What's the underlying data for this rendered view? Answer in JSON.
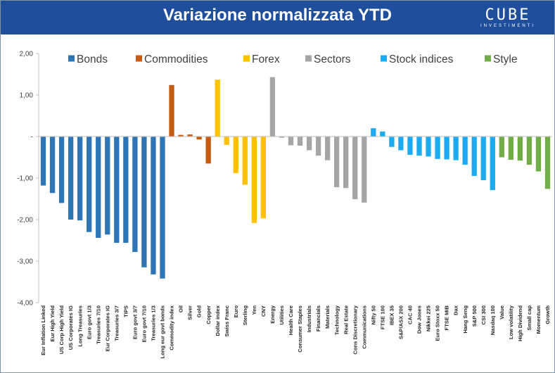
{
  "header": {
    "title": "Variazione normalizzata YTD",
    "logo_text": "CUBE",
    "logo_subtext": "INVESTIMENTI"
  },
  "chart_data": {
    "type": "bar",
    "title": "Variazione normalizzata YTD",
    "xlabel": "",
    "ylabel": "",
    "ylim": [
      -4,
      2
    ],
    "yticks": [
      2,
      1,
      0,
      -1,
      -2,
      -3,
      -4
    ],
    "ytick_labels": [
      "2,00",
      "1,00",
      "-",
      "-1,00",
      "-2,00",
      "-3,00",
      "-4,00"
    ],
    "grid": false,
    "legend_position": "top",
    "groups": [
      {
        "name": "Bonds",
        "color": "#2e75b6",
        "categories": [
          "Eur Inflation Linked",
          "Eur High Yield",
          "US Corp High Yield",
          "US Corporates IG",
          "Long Treasuries",
          "Euro govt 1/3",
          "Treasuries 7/10",
          "Eur Corporates IG",
          "Treasuries 3/7",
          "TIPS",
          "Euro govt 3/7",
          "Euro govt 7/10",
          "Treasuries 1/3",
          "Long eur govt bonds"
        ],
        "values": [
          -1.18,
          -1.36,
          -1.6,
          -2.0,
          -2.02,
          -2.3,
          -2.44,
          -2.36,
          -2.56,
          -2.56,
          -2.78,
          -3.15,
          -3.32,
          -3.42
        ]
      },
      {
        "name": "Commodities",
        "color": "#c55a11",
        "categories": [
          "Commodity index",
          "Oil",
          "Silver",
          "Gold",
          "Copper"
        ],
        "values": [
          1.24,
          0.04,
          0.05,
          -0.07,
          -0.65
        ]
      },
      {
        "name": "Forex",
        "color": "#ffc000",
        "categories": [
          "Dollar index",
          "Swiss Franc",
          "Euro",
          "Sterling",
          "Yen",
          "CNY"
        ],
        "values": [
          1.37,
          -0.2,
          -0.88,
          -1.16,
          -2.08,
          -1.97
        ]
      },
      {
        "name": "Sectors",
        "color": "#a5a5a5",
        "categories": [
          "Energy",
          "Utilities",
          "Health Care",
          "Consumer Staples",
          "Industrials",
          "Financials",
          "Materials",
          "Technology",
          "Real Estate",
          "Cons Discretionary",
          "Communications"
        ],
        "values": [
          1.43,
          -0.03,
          -0.21,
          -0.22,
          -0.33,
          -0.46,
          -0.57,
          -1.22,
          -1.24,
          -1.51,
          -1.59
        ]
      },
      {
        "name": "Stock indices",
        "color": "#1eaaf1",
        "categories": [
          "Nifty 50",
          "FTSE 100",
          "IBEX 35",
          "S&P/ASX 200",
          "CAC 40",
          "Dow Jones",
          "Nikkei 225",
          "Euro Stoxx 50",
          "FTSE MIB",
          "Dax",
          "Hang Seng",
          "S&P 500",
          "CSI 300",
          "Nasdaq 100"
        ],
        "values": [
          0.2,
          0.12,
          -0.25,
          -0.33,
          -0.44,
          -0.46,
          -0.48,
          -0.54,
          -0.55,
          -0.57,
          -0.68,
          -0.95,
          -1.05,
          -1.29
        ]
      },
      {
        "name": "Style",
        "color": "#70ad47",
        "categories": [
          "Value",
          "Low volatility",
          "High Dividend",
          "Small cap",
          "Momentum",
          "Growth"
        ],
        "values": [
          -0.5,
          -0.56,
          -0.58,
          -0.68,
          -0.84,
          -1.26
        ]
      }
    ]
  }
}
